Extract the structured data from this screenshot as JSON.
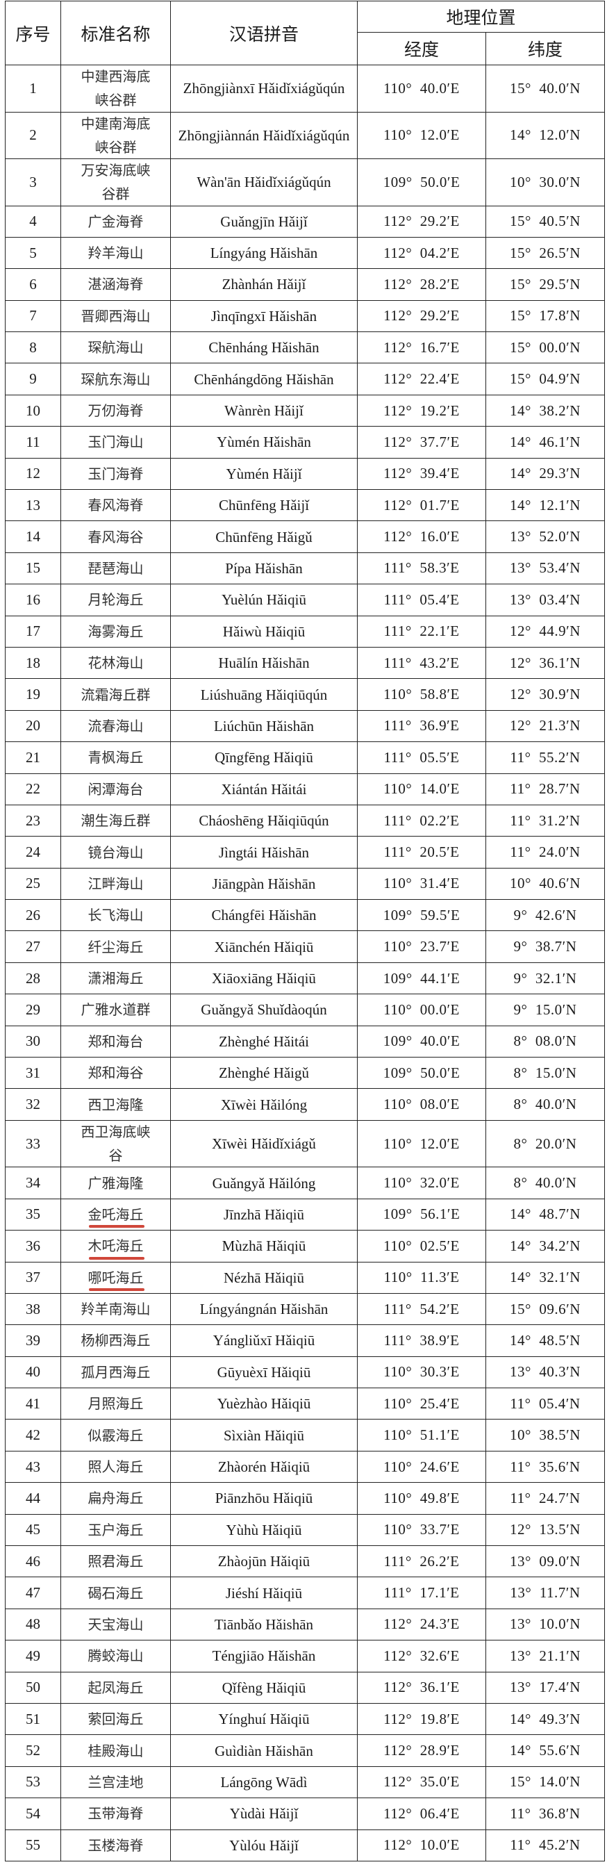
{
  "header": {
    "no": "序号",
    "name": "标准名称",
    "pinyin": "汉语拼音",
    "location": "地理位置",
    "longitude": "经度",
    "latitude": "纬度"
  },
  "annotation_color": "#d0473a",
  "underlined_rows": [
    "35",
    "36",
    "37"
  ],
  "rows": [
    [
      "1",
      "中建西海底峡谷群",
      "Zhōngjiànxī Hǎidǐxiágǔqún",
      "110°  40.0′E",
      "15°  40.0′N"
    ],
    [
      "2",
      "中建南海底峡谷群",
      "Zhōngjiànnán Hǎidǐxiágǔqún",
      "110°  12.0′E",
      "14°  12.0′N"
    ],
    [
      "3",
      "万安海底峡谷群",
      "Wàn'ān Hǎidǐxiágǔqún",
      "109°  50.0′E",
      "10°  30.0′N"
    ],
    [
      "4",
      "广金海脊",
      "Guǎngjīn Hǎijǐ",
      "112°  29.2′E",
      "15°  40.5′N"
    ],
    [
      "5",
      "羚羊海山",
      "Língyáng Hǎishān",
      "112°  04.2′E",
      "15°  26.5′N"
    ],
    [
      "6",
      "湛涵海脊",
      "Zhànhán Hǎijǐ",
      "112°  28.2′E",
      "15°  29.5′N"
    ],
    [
      "7",
      "晋卿西海山",
      "Jìnqīngxī Hǎishān",
      "112°  29.2′E",
      "15°  17.8′N"
    ],
    [
      "8",
      "琛航海山",
      "Chēnháng Hǎishān",
      "112°  16.7′E",
      "15°  00.0′N"
    ],
    [
      "9",
      "琛航东海山",
      "Chēnhángdōng Hǎishān",
      "112°  22.4′E",
      "15°  04.9′N"
    ],
    [
      "10",
      "万仞海脊",
      "Wànrèn Hǎijǐ",
      "112°  19.2′E",
      "14°  38.2′N"
    ],
    [
      "11",
      "玉门海山",
      "Yùmén Hǎishān",
      "112°  37.7′E",
      "14°  46.1′N"
    ],
    [
      "12",
      "玉门海脊",
      "Yùmén Hǎijǐ",
      "112°  39.4′E",
      "14°  29.3′N"
    ],
    [
      "13",
      "春风海脊",
      "Chūnfēng Hǎijǐ",
      "112°  01.7′E",
      "14°  12.1′N"
    ],
    [
      "14",
      "春风海谷",
      "Chūnfēng Hǎigǔ",
      "112°  16.0′E",
      "13°  52.0′N"
    ],
    [
      "15",
      "琵琶海山",
      "Pípa Hǎishān",
      "111°  58.3′E",
      "13°  53.4′N"
    ],
    [
      "16",
      "月轮海丘",
      "Yuèlún Hǎiqiū",
      "111°  05.4′E",
      "13°  03.4′N"
    ],
    [
      "17",
      "海雾海丘",
      "Hǎiwù Hǎiqiū",
      "111°  22.1′E",
      "12°  44.9′N"
    ],
    [
      "18",
      "花林海山",
      "Huālín Hǎishān",
      "111°  43.2′E",
      "12°  36.1′N"
    ],
    [
      "19",
      "流霜海丘群",
      "Liúshuāng Hǎiqiūqún",
      "110°  58.8′E",
      "12°  30.9′N"
    ],
    [
      "20",
      "流春海山",
      "Liúchūn Hǎishān",
      "111°  36.9′E",
      "12°  21.3′N"
    ],
    [
      "21",
      "青枫海丘",
      "Qīngfēng Hǎiqiū",
      "111°  05.5′E",
      "11°  55.2′N"
    ],
    [
      "22",
      "闲潭海台",
      "Xiántán Hǎitái",
      "110°  14.0′E",
      "11°  28.7′N"
    ],
    [
      "23",
      "潮生海丘群",
      "Cháoshēng Hǎiqiūqún",
      "111°  02.2′E",
      "11°  31.2′N"
    ],
    [
      "24",
      "镜台海山",
      "Jìngtái Hǎishān",
      "111°  20.5′E",
      "11°  24.0′N"
    ],
    [
      "25",
      "江畔海山",
      "Jiāngpàn Hǎishān",
      "110°  31.4′E",
      "10°  40.6′N"
    ],
    [
      "26",
      "长飞海山",
      "Chángfēi Hǎishān",
      "109°  59.5′E",
      "9°  42.6′N"
    ],
    [
      "27",
      "纤尘海丘",
      "Xiānchén Hǎiqiū",
      "110°  23.7′E",
      "9°  38.7′N"
    ],
    [
      "28",
      "潇湘海丘",
      "Xiāoxiāng Hǎiqiū",
      "109°  44.1′E",
      "9°  32.1′N"
    ],
    [
      "29",
      "广雅水道群",
      "Guǎngyǎ Shuǐdàoqún",
      "110°  00.0′E",
      "9°  15.0′N"
    ],
    [
      "30",
      "郑和海台",
      "Zhènghé Hǎitái",
      "109°  40.0′E",
      "8°  08.0′N"
    ],
    [
      "31",
      "郑和海谷",
      "Zhènghé Hǎigǔ",
      "109°  50.0′E",
      "8°  15.0′N"
    ],
    [
      "32",
      "西卫海隆",
      "Xīwèi Hǎilóng",
      "110°  08.0′E",
      "8°  40.0′N"
    ],
    [
      "33",
      "西卫海底峡谷",
      "Xīwèi Hǎidǐxiágǔ",
      "110°  12.0′E",
      "8°  20.0′N"
    ],
    [
      "34",
      "广雅海隆",
      "Guǎngyǎ Hǎilóng",
      "110°  32.0′E",
      "8°  40.0′N"
    ],
    [
      "35",
      "金吒海丘",
      "Jīnzhā Hǎiqiū",
      "109°  56.1′E",
      "14°  48.7′N"
    ],
    [
      "36",
      "木吒海丘",
      "Mùzhā Hǎiqiū",
      "110°  02.5′E",
      "14°  34.2′N"
    ],
    [
      "37",
      "哪吒海丘",
      "Nézhā Hǎiqiū",
      "110°  11.3′E",
      "14°  32.1′N"
    ],
    [
      "38",
      "羚羊南海山",
      "Língyángnán Hǎishān",
      "111°  54.2′E",
      "15°  09.6′N"
    ],
    [
      "39",
      "杨柳西海丘",
      "Yángliǔxī Hǎiqiū",
      "111°  38.9′E",
      "14°  48.5′N"
    ],
    [
      "40",
      "孤月西海丘",
      "Gūyuèxī Hǎiqiū",
      "110°  30.3′E",
      "13°  40.3′N"
    ],
    [
      "41",
      "月照海丘",
      "Yuèzhào Hǎiqiū",
      "110°  25.4′E",
      "11°  05.4′N"
    ],
    [
      "42",
      "似霰海丘",
      "Sìxiàn Hǎiqiū",
      "110°  51.1′E",
      "10°  38.5′N"
    ],
    [
      "43",
      "照人海丘",
      "Zhàorén Hǎiqiū",
      "110°  24.6′E",
      "11°  35.6′N"
    ],
    [
      "44",
      "扁舟海丘",
      "Piānzhōu Hǎiqiū",
      "110°  49.8′E",
      "11°  24.7′N"
    ],
    [
      "45",
      "玉户海丘",
      "Yùhù Hǎiqiū",
      "110°  33.7′E",
      "12°  13.5′N"
    ],
    [
      "46",
      "照君海丘",
      "Zhàojūn Hǎiqiū",
      "111°  26.2′E",
      "13°  09.0′N"
    ],
    [
      "47",
      "碣石海丘",
      "Jiéshí Hǎiqiū",
      "111°  17.1′E",
      "13°  11.7′N"
    ],
    [
      "48",
      "天宝海山",
      "Tiānbǎo Hǎishān",
      "112°  24.3′E",
      "13°  10.0′N"
    ],
    [
      "49",
      "腾蛟海山",
      "Téngjiāo Hǎishān",
      "112°  32.6′E",
      "13°  21.1′N"
    ],
    [
      "50",
      "起凤海丘",
      "Qǐfèng Hǎiqiū",
      "112°  36.1′E",
      "13°  17.4′N"
    ],
    [
      "51",
      "萦回海丘",
      "Yínghuí Hǎiqiū",
      "112°  19.8′E",
      "14°  49.3′N"
    ],
    [
      "52",
      "桂殿海山",
      "Guìdiàn Hǎishān",
      "112°  28.9′E",
      "14°  55.6′N"
    ],
    [
      "53",
      "兰宫洼地",
      "Lángōng Wādì",
      "112°  35.0′E",
      "15°  14.0′N"
    ],
    [
      "54",
      "玉带海脊",
      "Yùdài Hǎijǐ",
      "112°  06.4′E",
      "11°  36.8′N"
    ],
    [
      "55",
      "玉楼海脊",
      "Yùlóu Hǎijǐ",
      "112°  10.0′E",
      "11°  45.2′N"
    ]
  ]
}
